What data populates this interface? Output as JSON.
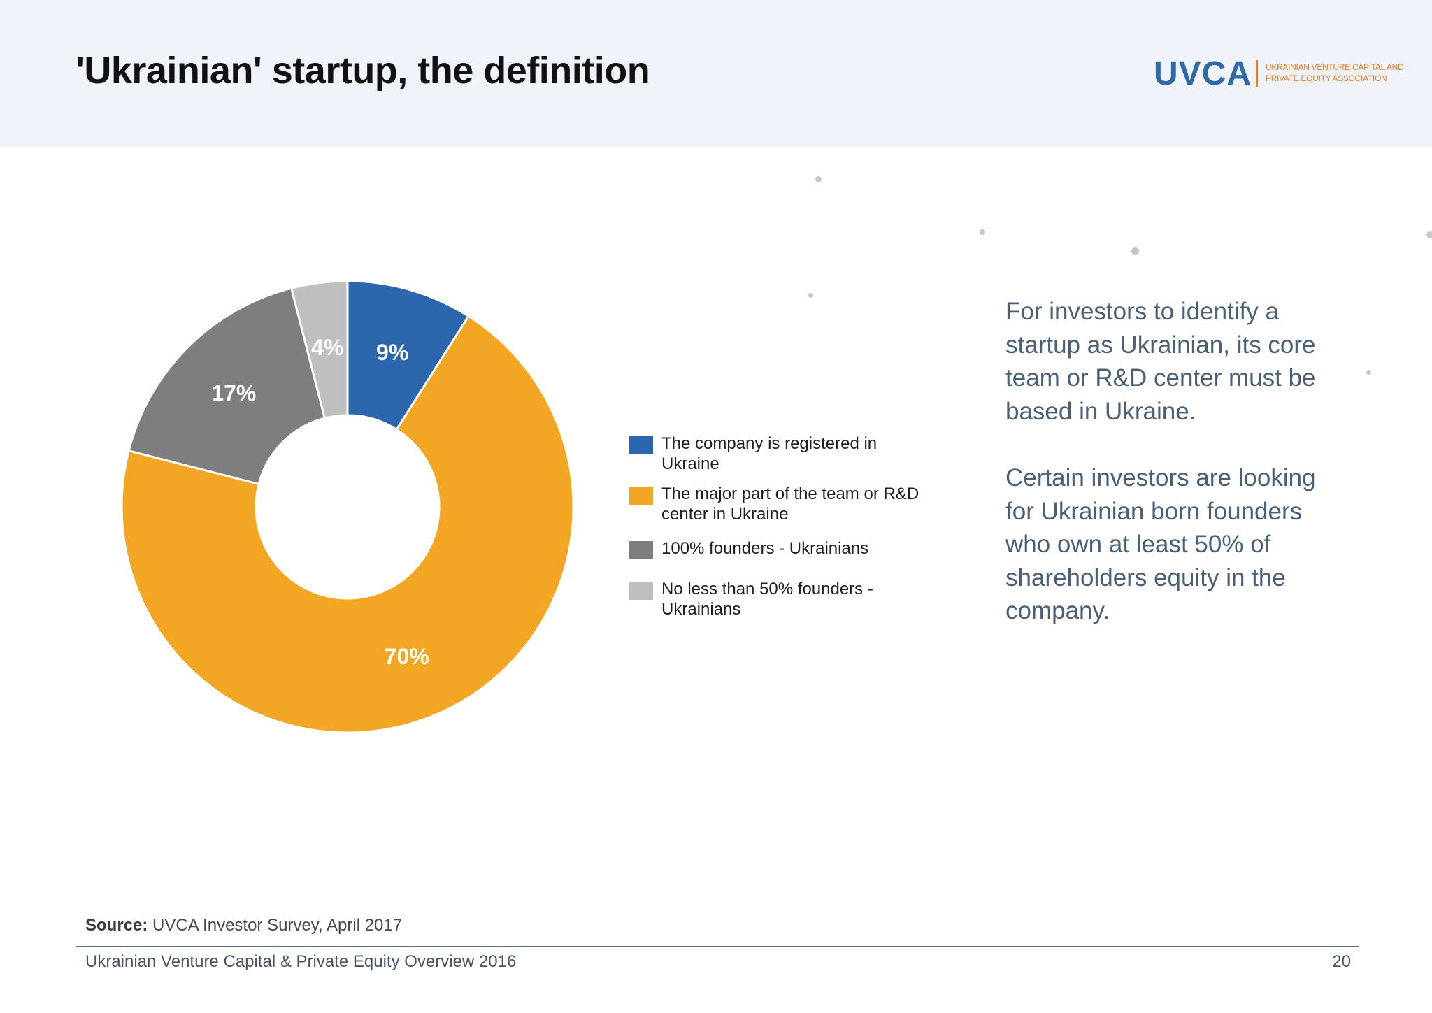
{
  "header": {
    "title": "'Ukrainian' startup, the definition",
    "background": "#f0f4fa"
  },
  "logo": {
    "mark": "UVCA",
    "subtitle_line1": "UKRAINIAN VENTURE CAPITAL AND",
    "subtitle_line2": "PRIVATE EQUITY ASSOCIATION",
    "mark_color": "#2e6aa6",
    "accent_color": "#e67e22"
  },
  "chart_data": {
    "type": "pie",
    "variant": "donut",
    "start_angle": "top, clockwise",
    "legend_position": "right",
    "categories": [
      "The company is registered in Ukraine",
      "The major part of the team or R&D center in Ukraine",
      "100% founders - Ukrainians",
      "No less than 50% founders - Ukrainians"
    ],
    "values": [
      9,
      70,
      17,
      4
    ],
    "value_labels": [
      "9%",
      "70%",
      "17%",
      "4%"
    ],
    "colors": [
      "#2c66ac",
      "#f2a623",
      "#7f7d80",
      "#bfbfc1"
    ],
    "label_color": "#ffffff"
  },
  "legend": {
    "items": [
      {
        "line1": "The company is registered in",
        "line2": "Ukraine",
        "color": "#2c66ac"
      },
      {
        "line1": "The major part of the team or R&D",
        "line2": "center in Ukraine",
        "color": "#f2a623"
      },
      {
        "line1": "100% founders - Ukrainians",
        "line2": "",
        "color": "#7f7d80"
      },
      {
        "line1": "No less than 50% founders -",
        "line2": "Ukrainians",
        "color": "#bfbfc1"
      }
    ]
  },
  "side_text": {
    "paragraph1": [
      "For investors to identify a",
      "startup as Ukrainian, its core",
      "team or R&D center must be",
      "based in Ukraine."
    ],
    "paragraph2": [
      "Certain investors are looking",
      "for Ukrainian born founders",
      "who own at least 50% of",
      "shareholders equity in the",
      "company."
    ],
    "color": "#4a6078"
  },
  "footer": {
    "source_label": "Source:",
    "source_text": " UVCA Investor Survey, April 2017",
    "title": "Ukrainian Venture Capital & Private Equity Overview 2016",
    "page_number": "20"
  }
}
